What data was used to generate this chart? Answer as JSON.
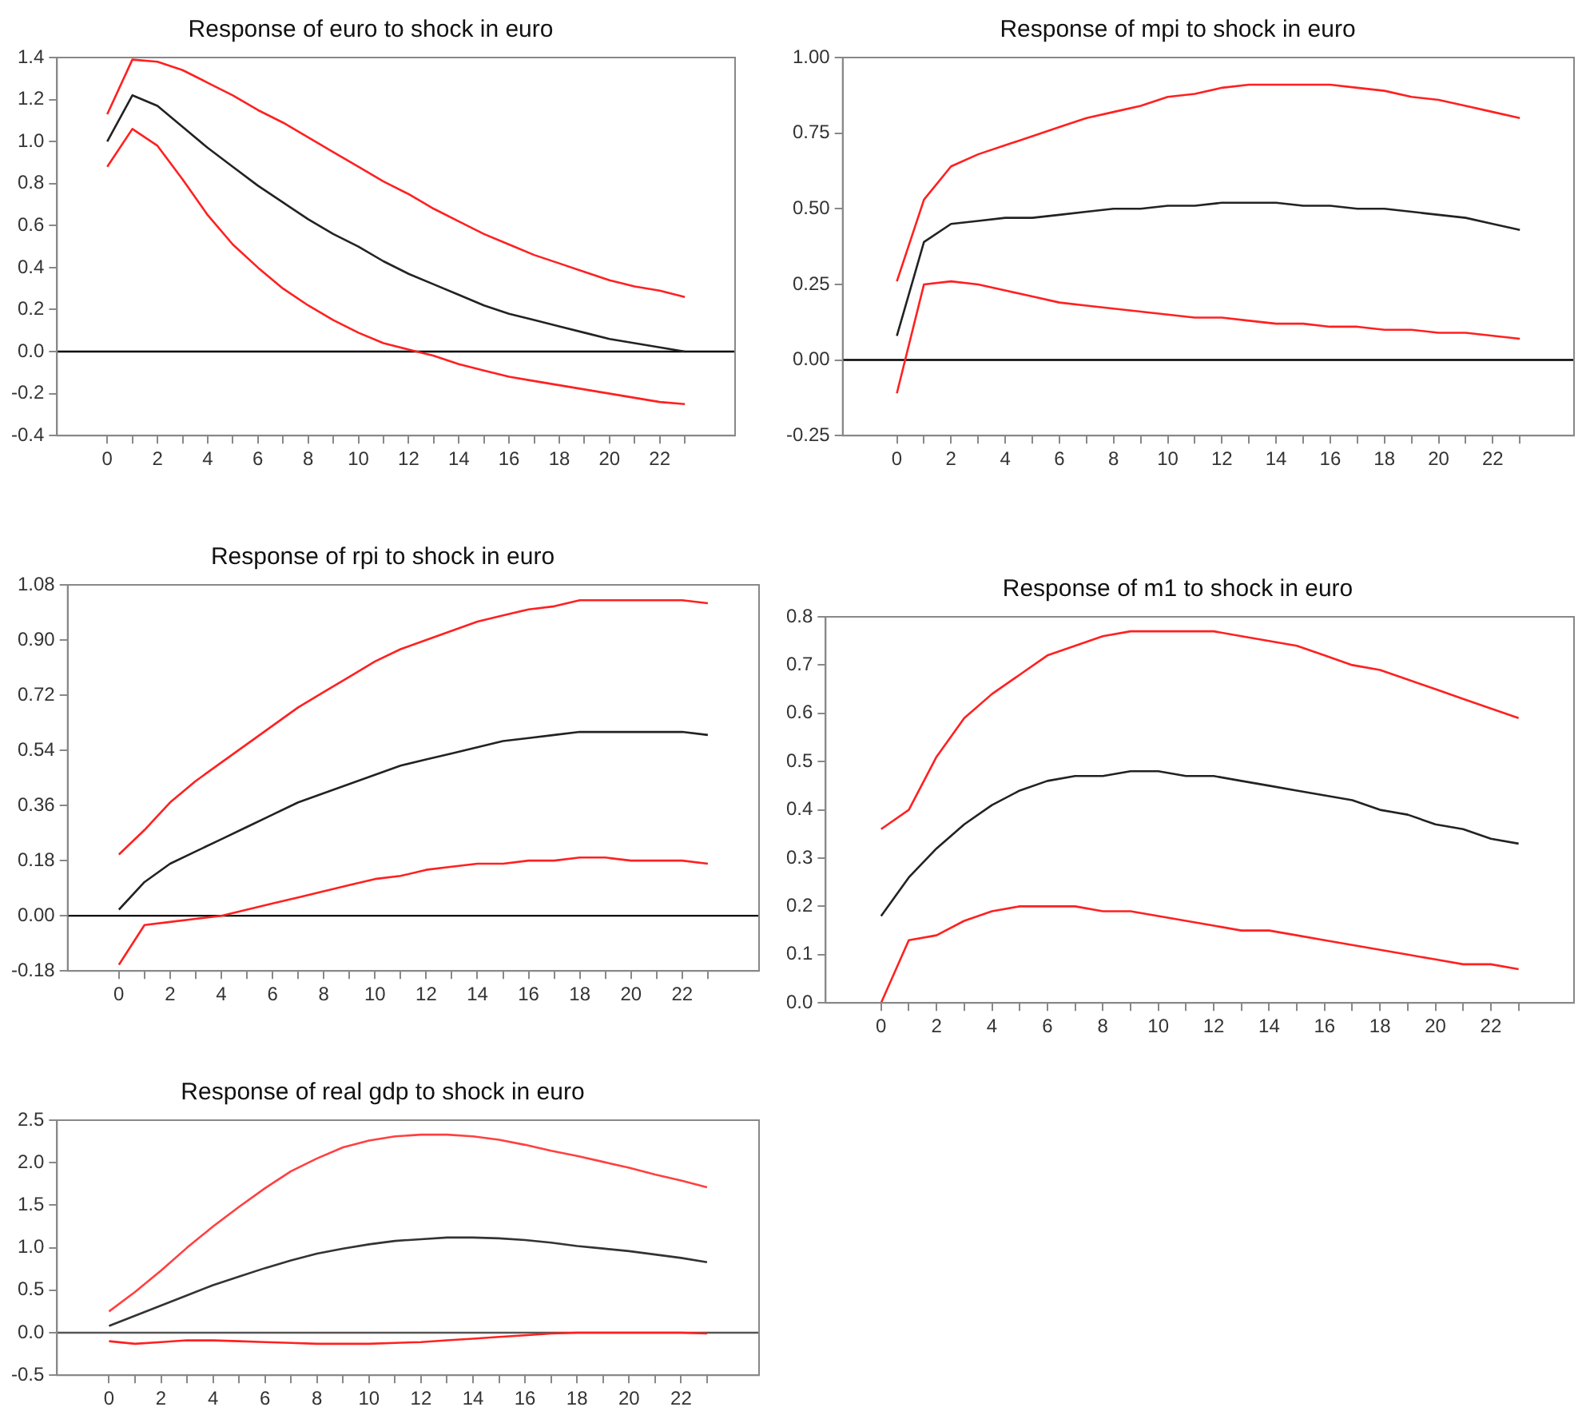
{
  "chart_data": [
    {
      "type": "line",
      "title": "Response of euro to shock in euro",
      "x": [
        0,
        1,
        2,
        3,
        4,
        5,
        6,
        7,
        8,
        9,
        10,
        11,
        12,
        13,
        14,
        15,
        16,
        17,
        18,
        19,
        20,
        21,
        22,
        23
      ],
      "xlim": [
        -2,
        25
      ],
      "xticks": [
        0,
        {
          "value": 1,
          "label": null
        },
        2,
        {
          "value": 3,
          "label": null
        },
        4,
        {
          "value": 5,
          "label": null
        },
        6,
        {
          "value": 7,
          "label": null
        },
        8,
        {
          "value": 9,
          "label": null
        },
        10,
        {
          "value": 11,
          "label": null
        },
        12,
        {
          "value": 13,
          "label": null
        },
        14,
        {
          "value": 15,
          "label": null
        },
        16,
        {
          "value": 17,
          "label": null
        },
        18,
        {
          "value": 19,
          "label": null
        },
        20,
        {
          "value": 21,
          "label": null
        },
        22,
        {
          "value": 23,
          "label": null
        }
      ],
      "ylim": [
        -0.4,
        1.4
      ],
      "yticks": [
        {
          "value": -0.4,
          "label": "-0.4"
        },
        {
          "value": -0.2,
          "label": "-0.2"
        },
        {
          "value": 0,
          "label": "0.0"
        },
        {
          "value": 0.2,
          "label": "0.2"
        },
        {
          "value": 0.4,
          "label": "0.4"
        },
        {
          "value": 0.6,
          "label": "0.6"
        },
        {
          "value": 0.8,
          "label": "0.8"
        },
        {
          "value": 1,
          "label": "1.0"
        },
        {
          "value": 1.2,
          "label": "1.2"
        },
        {
          "value": 1.4,
          "label": "1.4"
        }
      ],
      "grid": false,
      "legend": false,
      "marker": "none",
      "line_style": "solid",
      "ref_lines": [
        {
          "axis": "y",
          "value": 0,
          "color": "#000000"
        }
      ],
      "series": [
        {
          "color": "#ff2020",
          "values": [
            1.13,
            1.39,
            1.38,
            1.34,
            1.28,
            1.22,
            1.15,
            1.09,
            1.02,
            0.95,
            0.88,
            0.81,
            0.75,
            0.68,
            0.62,
            0.56,
            0.51,
            0.46,
            0.42,
            0.38,
            0.34,
            0.31,
            0.29,
            0.26
          ]
        },
        {
          "color": "#222222",
          "values": [
            1.0,
            1.22,
            1.17,
            1.07,
            0.97,
            0.88,
            0.79,
            0.71,
            0.63,
            0.56,
            0.5,
            0.43,
            0.37,
            0.32,
            0.27,
            0.22,
            0.18,
            0.15,
            0.12,
            0.09,
            0.06,
            0.04,
            0.02,
            0.0
          ]
        },
        {
          "color": "#ff2020",
          "values": [
            0.88,
            1.06,
            0.98,
            0.82,
            0.65,
            0.51,
            0.4,
            0.3,
            0.22,
            0.15,
            0.09,
            0.04,
            0.01,
            -0.02,
            -0.06,
            -0.09,
            -0.12,
            -0.14,
            -0.16,
            -0.18,
            -0.2,
            -0.22,
            -0.24,
            -0.25
          ]
        }
      ]
    },
    {
      "type": "line",
      "title": "Response of mpi to shock in euro",
      "x": [
        0,
        1,
        2,
        3,
        4,
        5,
        6,
        7,
        8,
        9,
        10,
        11,
        12,
        13,
        14,
        15,
        16,
        17,
        18,
        19,
        20,
        21,
        22,
        23
      ],
      "xlim": [
        -2,
        25
      ],
      "xticks": [
        0,
        {
          "value": 1,
          "label": null
        },
        2,
        {
          "value": 3,
          "label": null
        },
        4,
        {
          "value": 5,
          "label": null
        },
        6,
        {
          "value": 7,
          "label": null
        },
        8,
        {
          "value": 9,
          "label": null
        },
        10,
        {
          "value": 11,
          "label": null
        },
        12,
        {
          "value": 13,
          "label": null
        },
        14,
        {
          "value": 15,
          "label": null
        },
        16,
        {
          "value": 17,
          "label": null
        },
        18,
        {
          "value": 19,
          "label": null
        },
        20,
        {
          "value": 21,
          "label": null
        },
        22,
        {
          "value": 23,
          "label": null
        }
      ],
      "ylim": [
        -0.25,
        1.0
      ],
      "yticks": [
        {
          "value": -0.25,
          "label": "-0.25"
        },
        {
          "value": 0,
          "label": "0.00"
        },
        {
          "value": 0.25,
          "label": "0.25"
        },
        {
          "value": 0.5,
          "label": "0.50"
        },
        {
          "value": 0.75,
          "label": "0.75"
        },
        {
          "value": 1,
          "label": "1.00"
        }
      ],
      "grid": false,
      "legend": false,
      "marker": "none",
      "line_style": "solid",
      "ref_lines": [
        {
          "axis": "y",
          "value": 0,
          "color": "#000000"
        }
      ],
      "series": [
        {
          "color": "#ff2020",
          "values": [
            0.26,
            0.53,
            0.64,
            0.68,
            0.71,
            0.74,
            0.77,
            0.8,
            0.82,
            0.84,
            0.87,
            0.88,
            0.9,
            0.91,
            0.91,
            0.91,
            0.91,
            0.9,
            0.89,
            0.87,
            0.86,
            0.84,
            0.82,
            0.8
          ]
        },
        {
          "color": "#222222",
          "values": [
            0.08,
            0.39,
            0.45,
            0.46,
            0.47,
            0.47,
            0.48,
            0.49,
            0.5,
            0.5,
            0.51,
            0.51,
            0.52,
            0.52,
            0.52,
            0.51,
            0.51,
            0.5,
            0.5,
            0.49,
            0.48,
            0.47,
            0.45,
            0.43
          ]
        },
        {
          "color": "#ff2020",
          "values": [
            -0.11,
            0.25,
            0.26,
            0.25,
            0.23,
            0.21,
            0.19,
            0.18,
            0.17,
            0.16,
            0.15,
            0.14,
            0.14,
            0.13,
            0.12,
            0.12,
            0.11,
            0.11,
            0.1,
            0.1,
            0.09,
            0.09,
            0.08,
            0.07
          ]
        }
      ]
    },
    {
      "type": "line",
      "title": "Response of rpi to shock in euro",
      "x": [
        0,
        1,
        2,
        3,
        4,
        5,
        6,
        7,
        8,
        9,
        10,
        11,
        12,
        13,
        14,
        15,
        16,
        17,
        18,
        19,
        20,
        21,
        22,
        23
      ],
      "xlim": [
        -2,
        25
      ],
      "xticks": [
        0,
        {
          "value": 1,
          "label": null
        },
        2,
        {
          "value": 3,
          "label": null
        },
        4,
        {
          "value": 5,
          "label": null
        },
        6,
        {
          "value": 7,
          "label": null
        },
        8,
        {
          "value": 9,
          "label": null
        },
        10,
        {
          "value": 11,
          "label": null
        },
        12,
        {
          "value": 13,
          "label": null
        },
        14,
        {
          "value": 15,
          "label": null
        },
        16,
        {
          "value": 17,
          "label": null
        },
        18,
        {
          "value": 19,
          "label": null
        },
        20,
        {
          "value": 21,
          "label": null
        },
        22,
        {
          "value": 23,
          "label": null
        }
      ],
      "ylim": [
        -0.18,
        1.08
      ],
      "yticks": [
        {
          "value": -0.18,
          "label": "-0.18"
        },
        {
          "value": 0,
          "label": "0.00"
        },
        {
          "value": 0.18,
          "label": "0.18"
        },
        {
          "value": 0.36,
          "label": "0.36"
        },
        {
          "value": 0.54,
          "label": "0.54"
        },
        {
          "value": 0.72,
          "label": "0.72"
        },
        {
          "value": 0.9,
          "label": "0.90"
        },
        {
          "value": 1.08,
          "label": "1.08"
        }
      ],
      "grid": false,
      "legend": false,
      "marker": "none",
      "line_style": "solid",
      "ref_lines": [
        {
          "axis": "y",
          "value": 0,
          "color": "#000000"
        }
      ],
      "series": [
        {
          "color": "#ff2020",
          "values": [
            0.2,
            0.28,
            0.37,
            0.44,
            0.5,
            0.56,
            0.62,
            0.68,
            0.73,
            0.78,
            0.83,
            0.87,
            0.9,
            0.93,
            0.96,
            0.98,
            1.0,
            1.01,
            1.03,
            1.03,
            1.03,
            1.03,
            1.03,
            1.02
          ]
        },
        {
          "color": "#222222",
          "values": [
            0.02,
            0.11,
            0.17,
            0.21,
            0.25,
            0.29,
            0.33,
            0.37,
            0.4,
            0.43,
            0.46,
            0.49,
            0.51,
            0.53,
            0.55,
            0.57,
            0.58,
            0.59,
            0.6,
            0.6,
            0.6,
            0.6,
            0.6,
            0.59
          ]
        },
        {
          "color": "#ff2020",
          "values": [
            -0.16,
            -0.03,
            -0.02,
            -0.01,
            0.0,
            0.02,
            0.04,
            0.06,
            0.08,
            0.1,
            0.12,
            0.13,
            0.15,
            0.16,
            0.17,
            0.17,
            0.18,
            0.18,
            0.19,
            0.19,
            0.18,
            0.18,
            0.18,
            0.17
          ]
        }
      ]
    },
    {
      "type": "line",
      "title": "Response of m1 to shock in euro",
      "x": [
        0,
        1,
        2,
        3,
        4,
        5,
        6,
        7,
        8,
        9,
        10,
        11,
        12,
        13,
        14,
        15,
        16,
        17,
        18,
        19,
        20,
        21,
        22,
        23
      ],
      "xlim": [
        -2,
        25
      ],
      "xticks": [
        0,
        {
          "value": 1,
          "label": null
        },
        2,
        {
          "value": 3,
          "label": null
        },
        4,
        {
          "value": 5,
          "label": null
        },
        6,
        {
          "value": 7,
          "label": null
        },
        8,
        {
          "value": 9,
          "label": null
        },
        10,
        {
          "value": 11,
          "label": null
        },
        12,
        {
          "value": 13,
          "label": null
        },
        14,
        {
          "value": 15,
          "label": null
        },
        16,
        {
          "value": 17,
          "label": null
        },
        18,
        {
          "value": 19,
          "label": null
        },
        20,
        {
          "value": 21,
          "label": null
        },
        22,
        {
          "value": 23,
          "label": null
        }
      ],
      "ylim": [
        0,
        0.8
      ],
      "yticks": [
        {
          "value": 0,
          "label": "0.0"
        },
        {
          "value": 0.1,
          "label": "0.1"
        },
        {
          "value": 0.2,
          "label": "0.2"
        },
        {
          "value": 0.3,
          "label": "0.3"
        },
        {
          "value": 0.4,
          "label": "0.4"
        },
        {
          "value": 0.5,
          "label": "0.5"
        },
        {
          "value": 0.6,
          "label": "0.6"
        },
        {
          "value": 0.7,
          "label": "0.7"
        },
        {
          "value": 0.8,
          "label": "0.8"
        }
      ],
      "grid": false,
      "legend": false,
      "marker": "none",
      "line_style": "solid",
      "series": [
        {
          "color": "#ff2020",
          "values": [
            0.36,
            0.4,
            0.51,
            0.59,
            0.64,
            0.68,
            0.72,
            0.74,
            0.76,
            0.77,
            0.77,
            0.77,
            0.77,
            0.76,
            0.75,
            0.74,
            0.72,
            0.7,
            0.69,
            0.67,
            0.65,
            0.63,
            0.61,
            0.59
          ]
        },
        {
          "color": "#222222",
          "values": [
            0.18,
            0.26,
            0.32,
            0.37,
            0.41,
            0.44,
            0.46,
            0.47,
            0.47,
            0.48,
            0.48,
            0.47,
            0.47,
            0.46,
            0.45,
            0.44,
            0.43,
            0.42,
            0.4,
            0.39,
            0.37,
            0.36,
            0.34,
            0.33
          ]
        },
        {
          "color": "#ff2020",
          "values": [
            0.0,
            0.13,
            0.14,
            0.17,
            0.19,
            0.2,
            0.2,
            0.2,
            0.19,
            0.19,
            0.18,
            0.17,
            0.16,
            0.15,
            0.15,
            0.14,
            0.13,
            0.12,
            0.11,
            0.1,
            0.09,
            0.08,
            0.08,
            0.07
          ]
        }
      ]
    },
    {
      "type": "line",
      "title": "Response of real gdp to shock in euro",
      "x": [
        0,
        1,
        2,
        3,
        4,
        5,
        6,
        7,
        8,
        9,
        10,
        11,
        12,
        13,
        14,
        15,
        16,
        17,
        18,
        19,
        20,
        21,
        22,
        23
      ],
      "xlim": [
        -2,
        25
      ],
      "xticks": [
        0,
        {
          "value": 1,
          "label": null
        },
        2,
        {
          "value": 3,
          "label": null
        },
        4,
        {
          "value": 5,
          "label": null
        },
        6,
        {
          "value": 7,
          "label": null
        },
        8,
        {
          "value": 9,
          "label": null
        },
        10,
        {
          "value": 11,
          "label": null
        },
        12,
        {
          "value": 13,
          "label": null
        },
        14,
        {
          "value": 15,
          "label": null
        },
        16,
        {
          "value": 17,
          "label": null
        },
        18,
        {
          "value": 19,
          "label": null
        },
        20,
        {
          "value": 21,
          "label": null
        },
        22,
        {
          "value": 23,
          "label": null
        }
      ],
      "ylim": [
        -0.5,
        2.5
      ],
      "yticks": [
        {
          "value": -0.5,
          "label": "-0.5"
        },
        {
          "value": 0,
          "label": "0.0"
        },
        {
          "value": 0.5,
          "label": "0.5"
        },
        {
          "value": 1,
          "label": "1.0"
        },
        {
          "value": 1.5,
          "label": "1.5"
        },
        {
          "value": 2,
          "label": "2.0"
        },
        {
          "value": 2.5,
          "label": "2.5"
        }
      ],
      "grid": false,
      "legend": false,
      "marker": "none",
      "line_style": "solid",
      "ref_lines": [
        {
          "axis": "y",
          "value": 0,
          "color": "#555555"
        }
      ],
      "series": [
        {
          "color": "#ff4040",
          "values": [
            0.25,
            0.48,
            0.73,
            1.0,
            1.25,
            1.48,
            1.7,
            1.9,
            2.05,
            2.18,
            2.26,
            2.31,
            2.33,
            2.33,
            2.31,
            2.27,
            2.21,
            2.14,
            2.08,
            2.01,
            1.94,
            1.86,
            1.79,
            1.71
          ]
        },
        {
          "color": "#333333",
          "values": [
            0.08,
            0.2,
            0.32,
            0.44,
            0.56,
            0.66,
            0.76,
            0.85,
            0.93,
            0.99,
            1.04,
            1.08,
            1.1,
            1.12,
            1.12,
            1.11,
            1.09,
            1.06,
            1.02,
            0.99,
            0.96,
            0.92,
            0.88,
            0.83
          ]
        },
        {
          "color": "#ff2020",
          "values": [
            -0.1,
            -0.13,
            -0.11,
            -0.09,
            -0.09,
            -0.1,
            -0.11,
            -0.12,
            -0.13,
            -0.13,
            -0.13,
            -0.12,
            -0.11,
            -0.09,
            -0.07,
            -0.05,
            -0.03,
            -0.01,
            0.0,
            0.0,
            0.0,
            0.0,
            0.0,
            -0.01
          ]
        }
      ]
    }
  ]
}
